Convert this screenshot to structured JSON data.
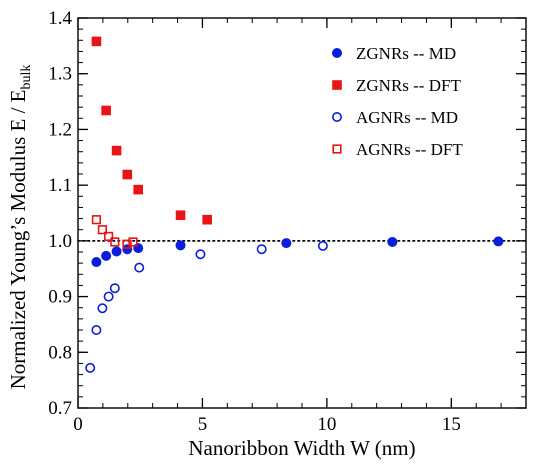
{
  "chart_data": {
    "type": "scatter",
    "xlabel": "Nanoribbon Width  W (nm)",
    "ylabel": "Normalized Young’s Modulus   E / E",
    "ylabel_subscript": "bulk",
    "xlim": [
      0,
      18
    ],
    "ylim": [
      0.7,
      1.4
    ],
    "xticks": [
      0,
      5,
      10,
      15
    ],
    "yticks": [
      0.7,
      0.8,
      0.9,
      1.0,
      1.1,
      1.2,
      1.3,
      1.4
    ],
    "xtick_labels": [
      "0",
      "5",
      "10",
      "15"
    ],
    "ytick_labels": [
      "0.7",
      "0.8",
      "0.9",
      "1.0",
      "1.1",
      "1.2",
      "1.3",
      "1.4"
    ],
    "x_minor_step": 1,
    "y_minor_step": 0.02,
    "reference_line": {
      "y": 1.0,
      "style": "dotted"
    },
    "legend_position": "top-right",
    "grid": false,
    "series": [
      {
        "name": "ZGNRs -- MD",
        "marker": "circle",
        "filled": true,
        "color": "#0a1edc",
        "points": [
          [
            0.74,
            0.962
          ],
          [
            1.13,
            0.973
          ],
          [
            1.55,
            0.981
          ],
          [
            1.98,
            0.985
          ],
          [
            2.42,
            0.987
          ],
          [
            4.12,
            0.992
          ],
          [
            8.37,
            0.996
          ],
          [
            12.63,
            0.998
          ],
          [
            16.89,
            0.999
          ]
        ]
      },
      {
        "name": "ZGNRs -- DFT",
        "marker": "square",
        "filled": true,
        "color": "#e81416",
        "points": [
          [
            0.74,
            1.358
          ],
          [
            1.13,
            1.234
          ],
          [
            1.55,
            1.162
          ],
          [
            1.98,
            1.119
          ],
          [
            2.42,
            1.092
          ],
          [
            4.12,
            1.046
          ],
          [
            5.19,
            1.038
          ]
        ]
      },
      {
        "name": "AGNRs -- MD",
        "marker": "circle",
        "filled": false,
        "color": "#0a1edc",
        "points": [
          [
            0.49,
            0.772
          ],
          [
            0.74,
            0.84
          ],
          [
            0.98,
            0.879
          ],
          [
            1.23,
            0.9
          ],
          [
            1.48,
            0.915
          ],
          [
            2.46,
            0.952
          ],
          [
            4.92,
            0.976
          ],
          [
            7.38,
            0.985
          ],
          [
            9.84,
            0.991
          ]
        ]
      },
      {
        "name": "AGNRs -- DFT",
        "marker": "square",
        "filled": false,
        "color": "#e81416",
        "points": [
          [
            0.74,
            1.038
          ],
          [
            0.98,
            1.02
          ],
          [
            1.23,
            1.008
          ],
          [
            1.48,
            0.998
          ],
          [
            1.97,
            0.994
          ],
          [
            2.21,
            0.998
          ]
        ]
      }
    ]
  }
}
